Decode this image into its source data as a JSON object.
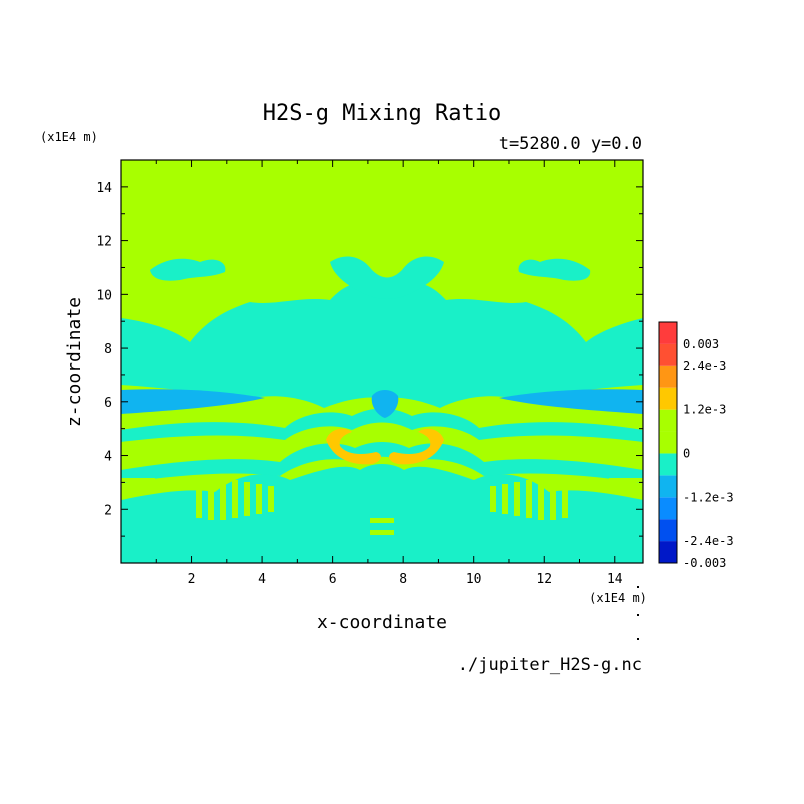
{
  "chart_data": {
    "type": "heatmap",
    "title": "H2S-g Mixing Ratio",
    "subtitle": "t=5280.0 y=0.0",
    "xlabel": "x-coordinate",
    "ylabel": "z-coordinate",
    "x_unit": "(x1E4 m)",
    "y_unit": "(x1E4 m)",
    "xlim": [
      0,
      14.8
    ],
    "ylim": [
      0,
      15.0
    ],
    "x_ticks": [
      2,
      4,
      6,
      8,
      10,
      12,
      14
    ],
    "y_ticks": [
      2,
      4,
      6,
      8,
      10,
      12,
      14
    ],
    "colorbar": {
      "tick_labels": [
        "0.003",
        "2.4e-3",
        "1.2e-3",
        "0",
        "-1.2e-3",
        "-2.4e-3",
        "-0.003"
      ],
      "tick_values": [
        0.003,
        0.0024,
        0.0012,
        0,
        -0.0012,
        -0.0024,
        -0.003
      ],
      "levels": [
        {
          "min": -0.003,
          "max": -0.0024,
          "color": "#0018c8"
        },
        {
          "min": -0.0024,
          "max": -0.0018,
          "color": "#0050f0"
        },
        {
          "min": -0.0018,
          "max": -0.0012,
          "color": "#0a8cff"
        },
        {
          "min": -0.0012,
          "max": -0.0006,
          "color": "#10b4f0"
        },
        {
          "min": -0.0006,
          "max": 0,
          "color": "#19f0c8"
        },
        {
          "min": 0,
          "max": 0.0006,
          "color": "#a8ff00"
        },
        {
          "min": 0.0006,
          "max": 0.0012,
          "color": "#a8ff00"
        },
        {
          "min": 0.0012,
          "max": 0.0018,
          "color": "#ffc800"
        },
        {
          "min": 0.0018,
          "max": 0.0024,
          "color": "#ff9614"
        },
        {
          "min": 0.0024,
          "max": 0.003,
          "color": "#ff5032"
        },
        {
          "min": 0.003,
          "max": 0.0036,
          "color": "#ff3c3c"
        }
      ]
    },
    "field_colors": {
      "background": "#a8ff00",
      "negative_small": "#19f0c8",
      "negative_mid": "#10b4f0",
      "positive_mid": "#ffc800"
    }
  },
  "footer": {
    "source_file": "./jupiter_H2S-g.nc"
  }
}
